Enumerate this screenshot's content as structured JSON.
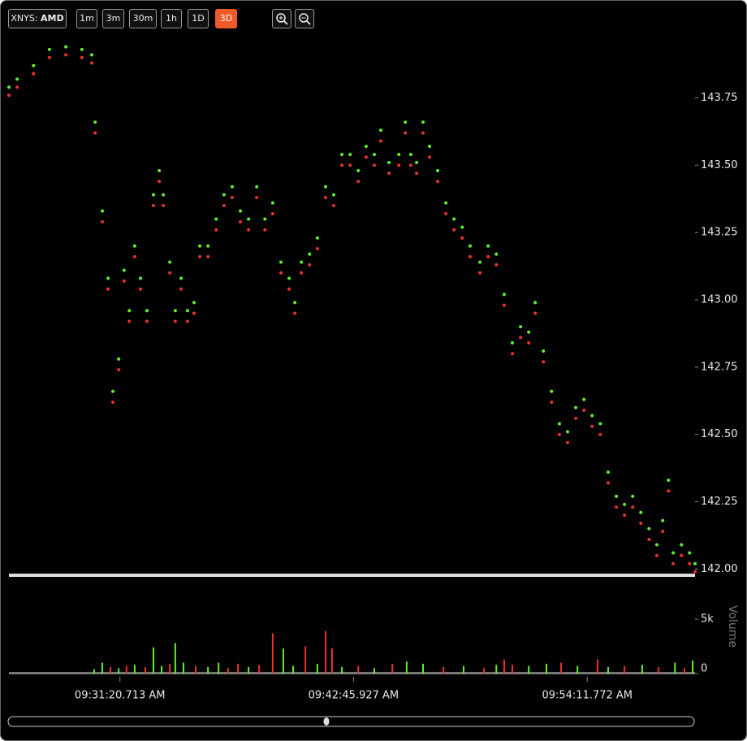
{
  "toolbar": {
    "exchange": "XNYS:",
    "symbol": "AMD",
    "ranges": [
      "1m",
      "3m",
      "30m",
      "1h",
      "1D",
      "3D"
    ]
  },
  "chart_data": [
    {
      "type": "scatter",
      "x": [
        33955,
        33979,
        34027,
        34074,
        34122,
        34169,
        34198,
        34208,
        34229,
        34246,
        34260,
        34277,
        34293,
        34308,
        34324,
        34341,
        34360,
        34379,
        34396,
        34408,
        34427,
        34443,
        34460,
        34479,
        34498,
        34515,
        34539,
        34563,
        34586,
        34610,
        34634,
        34658,
        34682,
        34706,
        34729,
        34753,
        34777,
        34794,
        34813,
        34837,
        34860,
        34884,
        34908,
        34932,
        34956,
        34980,
        35003,
        35027,
        35046,
        35070,
        35099,
        35118,
        35134,
        35151,
        35170,
        35189,
        35213,
        35237,
        35261,
        35285,
        35308,
        35337,
        35361,
        35385,
        35408,
        35432,
        35456,
        35480,
        35499,
        35523,
        35547,
        35570,
        35594,
        35618,
        35642,
        35666,
        35690,
        35713,
        35737,
        35761,
        35785,
        35809,
        35833,
        35856,
        35873,
        35890,
        35904,
        35928,
        35952,
        35968
      ],
      "series": [
        {
          "color": "#5ef02a",
          "values": [
            143.79,
            143.82,
            143.87,
            143.93,
            143.94,
            143.93,
            143.91,
            143.66,
            143.33,
            143.08,
            142.66,
            142.78,
            143.11,
            142.96,
            143.2,
            143.08,
            142.96,
            143.39,
            143.48,
            143.39,
            143.14,
            142.96,
            143.08,
            142.96,
            142.99,
            143.2,
            143.2,
            143.3,
            143.39,
            143.42,
            143.33,
            143.3,
            143.42,
            143.3,
            143.36,
            143.14,
            143.08,
            142.99,
            143.14,
            143.17,
            143.23,
            143.42,
            143.39,
            143.54,
            143.54,
            143.48,
            143.57,
            143.54,
            143.63,
            143.51,
            143.54,
            143.66,
            143.54,
            143.51,
            143.66,
            143.57,
            143.48,
            143.36,
            143.3,
            143.27,
            143.2,
            143.14,
            143.2,
            143.17,
            143.02,
            142.84,
            142.9,
            142.88,
            142.99,
            142.81,
            142.66,
            142.54,
            142.51,
            142.6,
            142.63,
            142.57,
            142.54,
            142.36,
            142.27,
            142.24,
            142.27,
            142.21,
            142.15,
            142.09,
            142.18,
            142.33,
            142.06,
            142.09,
            142.06,
            142.02
          ]
        },
        {
          "color": "#e8322a",
          "values": [
            143.76,
            143.79,
            143.84,
            143.9,
            143.91,
            143.9,
            143.88,
            143.62,
            143.29,
            143.04,
            142.62,
            142.74,
            143.07,
            142.92,
            143.16,
            143.04,
            142.92,
            143.35,
            143.44,
            143.35,
            143.1,
            142.92,
            143.04,
            142.92,
            142.95,
            143.16,
            143.16,
            143.26,
            143.35,
            143.38,
            143.29,
            143.26,
            143.38,
            143.26,
            143.32,
            143.1,
            143.04,
            142.95,
            143.1,
            143.13,
            143.19,
            143.38,
            143.35,
            143.5,
            143.5,
            143.44,
            143.53,
            143.5,
            143.59,
            143.47,
            143.5,
            143.62,
            143.5,
            143.47,
            143.62,
            143.53,
            143.44,
            143.32,
            143.26,
            143.23,
            143.16,
            143.1,
            143.16,
            143.13,
            142.98,
            142.8,
            142.86,
            142.84,
            142.95,
            142.77,
            142.62,
            142.5,
            142.47,
            142.56,
            142.59,
            142.53,
            142.5,
            142.32,
            142.23,
            142.2,
            142.23,
            142.17,
            142.11,
            142.05,
            142.14,
            142.29,
            142.02,
            142.05,
            142.02,
            141.99
          ]
        }
      ],
      "xlim": [
        33955,
        35968
      ],
      "ylim": [
        141.98,
        143.99
      ],
      "yticks": [
        142.25,
        {
          "value": 142.5,
          "label": "142.50"
        },
        142.75,
        {
          "value": 143,
          "label": "143.00"
        },
        143.25,
        {
          "value": 143.5,
          "label": "143.50"
        },
        143.75,
        {
          "value": 142,
          "label": "142.00"
        }
      ]
    },
    {
      "type": "bar",
      "y_label": "Volume",
      "x": [
        34205,
        34229,
        34253,
        34277,
        34300,
        34324,
        34355,
        34379,
        34403,
        34427,
        34443,
        34467,
        34503,
        34539,
        34570,
        34598,
        34627,
        34658,
        34689,
        34729,
        34760,
        34789,
        34825,
        34860,
        34884,
        34903,
        34932,
        34980,
        35027,
        35080,
        35122,
        35170,
        35230,
        35289,
        35349,
        35385,
        35408,
        35432,
        35480,
        35532,
        35575,
        35623,
        35682,
        35713,
        35761,
        35813,
        35861,
        35909,
        35937,
        35961
      ],
      "series": [
        {
          "color": "#5ef02a",
          "values": [
            400,
            1000,
            null,
            500,
            null,
            800,
            null,
            2400,
            700,
            null,
            2800,
            1000,
            null,
            600,
            1000,
            null,
            null,
            600,
            null,
            null,
            2300,
            700,
            null,
            900,
            null,
            null,
            600,
            null,
            500,
            null,
            1100,
            900,
            null,
            700,
            null,
            800,
            null,
            null,
            700,
            900,
            null,
            700,
            null,
            600,
            null,
            800,
            null,
            1000,
            null,
            1200
          ]
        },
        {
          "color": "#e8322a",
          "values": [
            null,
            null,
            600,
            null,
            700,
            null,
            600,
            null,
            null,
            900,
            null,
            null,
            700,
            null,
            null,
            500,
            900,
            null,
            800,
            3700,
            null,
            null,
            2500,
            null,
            3900,
            2300,
            null,
            700,
            null,
            900,
            null,
            null,
            600,
            null,
            500,
            null,
            1300,
            800,
            null,
            null,
            1000,
            null,
            1300,
            null,
            700,
            null,
            600,
            null,
            500,
            null
          ]
        }
      ],
      "xlim": [
        33955,
        35968
      ],
      "xticks": [
        {
          "value": 34280.713,
          "label": "09:31:20.713 AM"
        },
        {
          "value": 34965.927,
          "label": "09:42:45.927 AM"
        },
        {
          "value": 35651.772,
          "label": "09:54:11.772 AM"
        }
      ],
      "ylim": [
        0,
        8650
      ],
      "yticks": [
        0,
        {
          "value": 5000,
          "label": "5k"
        }
      ]
    }
  ]
}
